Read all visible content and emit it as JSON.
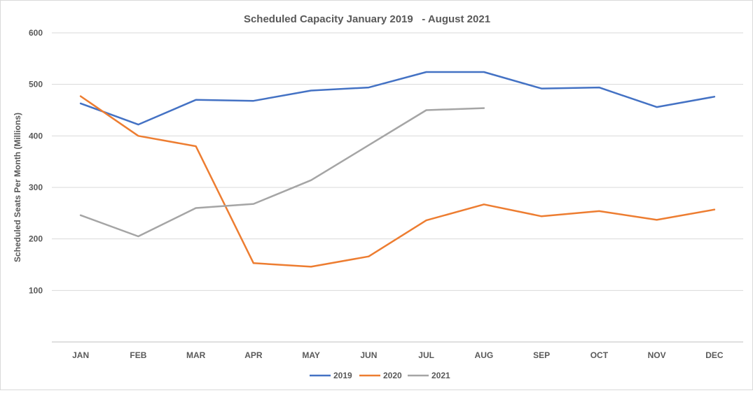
{
  "chart_data": {
    "type": "line",
    "title": "Scheduled Capacity January 2019   - August 2021",
    "xlabel": "",
    "ylabel": "Scheduled Seats Per Month (Millions)",
    "ylim": [
      0,
      600
    ],
    "yticks": [
      100,
      200,
      300,
      400,
      500,
      600
    ],
    "grid": true,
    "legend_position": "bottom",
    "categories": [
      "JAN",
      "FEB",
      "MAR",
      "APR",
      "MAY",
      "JUN",
      "JUL",
      "AUG",
      "SEP",
      "OCT",
      "NOV",
      "DEC"
    ],
    "series": [
      {
        "name": "2019",
        "color": "#4472c4",
        "values": [
          463,
          422,
          470,
          468,
          488,
          494,
          524,
          524,
          492,
          494,
          456,
          476
        ]
      },
      {
        "name": "2020",
        "color": "#ed7d31",
        "values": [
          477,
          400,
          380,
          153,
          146,
          166,
          236,
          267,
          244,
          254,
          237,
          257
        ]
      },
      {
        "name": "2021",
        "color": "#a5a5a5",
        "values": [
          246,
          205,
          260,
          268,
          314,
          382,
          450,
          454,
          null,
          null,
          null,
          null
        ]
      }
    ]
  }
}
